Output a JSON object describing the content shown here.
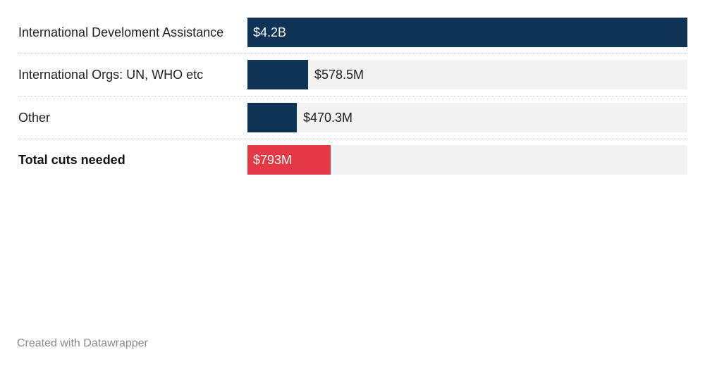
{
  "chart_data": {
    "type": "bar",
    "orientation": "horizontal",
    "categories": [
      "International Develoment Assistance",
      "International Orgs: UN, WHO etc",
      "Other",
      "Total cuts needed"
    ],
    "values": [
      4200,
      578.5,
      470.3,
      793
    ],
    "value_labels": [
      "$4.2B",
      "$578.5M",
      "$470.3M",
      "$793M"
    ],
    "unit": "$M",
    "xlim": [
      0,
      4200
    ],
    "highlight": [
      false,
      false,
      false,
      true
    ],
    "bold_label": [
      false,
      false,
      false,
      true
    ],
    "colors": {
      "bar": "#0f3257",
      "highlight": "#e63946",
      "track": "#f2f2f2"
    },
    "grid": false
  },
  "footer": {
    "credit": "Created with Datawrapper"
  }
}
